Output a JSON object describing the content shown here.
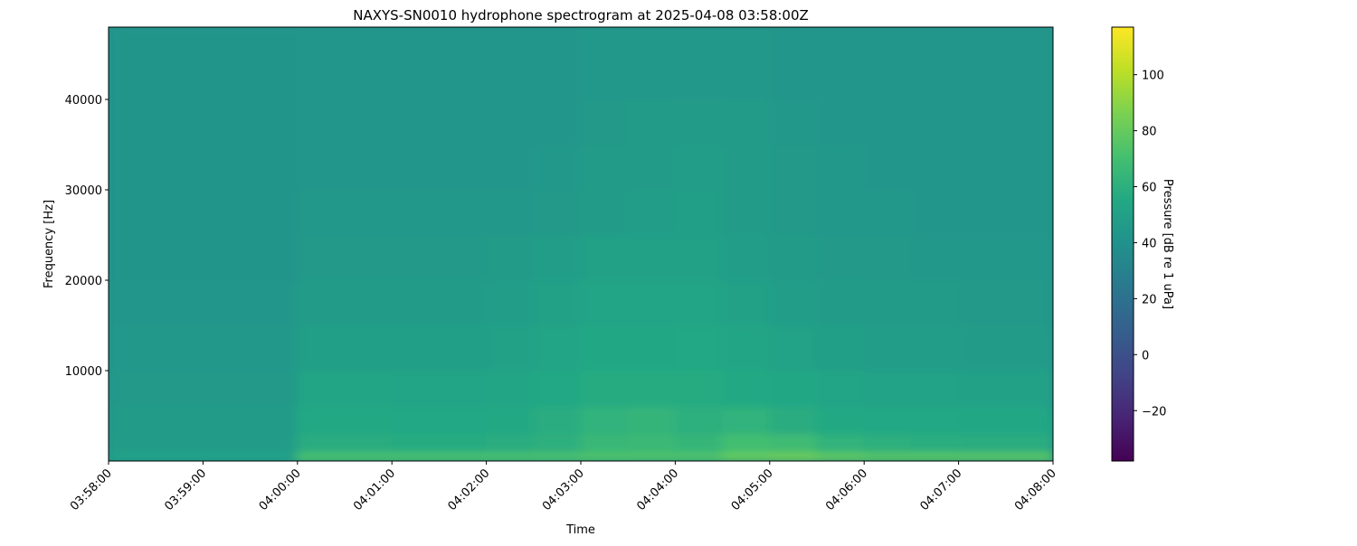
{
  "chart_data": {
    "type": "heatmap",
    "title": "NAXYS-SN0010 hydrophone spectrogram at 2025-04-08 03:58:00Z",
    "xlabel": "Time",
    "ylabel": "Frequency [Hz]",
    "x_tick_labels": [
      "03:58:00",
      "03:59:00",
      "04:00:00",
      "04:01:00",
      "04:02:00",
      "04:03:00",
      "04:04:00",
      "04:05:00",
      "04:06:00",
      "04:07:00",
      "04:08:00"
    ],
    "y_ticks": [
      10000,
      20000,
      30000,
      40000
    ],
    "y_tick_labels": [
      "10000",
      "20000",
      "30000",
      "40000"
    ],
    "ylim": [
      0,
      48000
    ],
    "colormap": "viridis",
    "colorbar": {
      "label": "Pressure [dB re 1 uPa]",
      "range": [
        -38,
        117
      ],
      "ticks": [
        -20,
        0,
        20,
        40,
        60,
        80,
        100
      ],
      "tick_labels": [
        "−20",
        "0",
        "20",
        "40",
        "60",
        "80",
        "100"
      ]
    },
    "time_bin_seconds": 30,
    "frequency_band_edges_hz": [
      0,
      1000,
      3000,
      6000,
      10000,
      15000,
      20000,
      25000,
      30000,
      35000,
      40000,
      48000
    ],
    "values_db": [
      [
        50,
        50,
        50,
        50,
        72,
        72,
        72,
        72,
        72,
        72,
        74,
        74,
        74,
        80,
        82,
        78,
        76,
        76,
        76,
        76
      ],
      [
        47,
        47,
        47,
        47,
        58,
        58,
        57,
        57,
        58,
        60,
        65,
        66,
        64,
        70,
        68,
        62,
        60,
        59,
        58,
        58
      ],
      [
        46,
        46,
        46,
        46,
        56,
        56,
        55,
        55,
        56,
        58,
        62,
        63,
        60,
        62,
        58,
        56,
        55,
        55,
        54,
        54
      ],
      [
        45,
        45,
        45,
        45,
        53,
        53,
        52,
        52,
        53,
        55,
        57,
        57,
        57,
        56,
        54,
        52,
        51,
        51,
        50,
        50
      ],
      [
        44,
        44,
        44,
        44,
        49,
        49,
        49,
        49,
        50,
        52,
        54,
        54,
        55,
        53,
        51,
        49,
        48,
        48,
        47,
        47
      ],
      [
        43,
        43,
        43,
        43,
        47,
        47,
        47,
        47,
        48,
        50,
        52,
        52,
        52,
        50,
        48,
        47,
        46,
        46,
        45,
        45
      ],
      [
        42,
        42,
        42,
        42,
        45,
        45,
        45,
        45,
        46,
        48,
        50,
        50,
        50,
        48,
        46,
        45,
        45,
        44,
        44,
        44
      ],
      [
        42,
        42,
        42,
        42,
        44,
        44,
        44,
        44,
        44,
        45,
        47,
        48,
        49,
        47,
        45,
        44,
        44,
        43,
        43,
        43
      ],
      [
        42,
        42,
        42,
        42,
        43,
        43,
        43,
        43,
        43,
        44,
        46,
        47,
        48,
        47,
        45,
        44,
        43,
        43,
        43,
        43
      ],
      [
        42,
        42,
        42,
        42,
        43,
        43,
        43,
        43,
        43,
        43,
        45,
        46,
        47,
        46,
        44,
        43,
        43,
        43,
        43,
        43
      ],
      [
        42,
        42,
        42,
        42,
        43,
        43,
        43,
        43,
        43,
        43,
        44,
        44,
        44,
        44,
        43,
        43,
        43,
        43,
        43,
        43
      ]
    ]
  }
}
